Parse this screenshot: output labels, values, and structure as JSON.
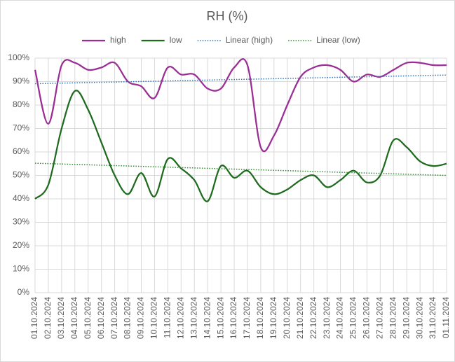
{
  "chart_data": {
    "type": "line",
    "title": "RH (%)",
    "categories": [
      "01.10.2024",
      "02.10.2024",
      "03.10.2024",
      "04.10.2024",
      "05.10.2024",
      "06.10.2024",
      "07.10.2024",
      "08.10.2024",
      "09.10.2024",
      "10.10.2024",
      "11.10.2024",
      "12.10.2024",
      "13.10.2024",
      "14.10.2024",
      "15.10.2024",
      "16.10.2024",
      "17.10.2024",
      "18.10.2024",
      "19.10.2024",
      "20.10.2024",
      "21.10.2024",
      "22.10.2024",
      "23.10.2024",
      "24.10.2024",
      "25.10.2024",
      "26.10.2024",
      "27.10.2024",
      "28.10.2024",
      "29.10.2024",
      "30.10.2024",
      "31.10.2024",
      "01.11.2024"
    ],
    "series": [
      {
        "name": "high",
        "color": "#9b2d94",
        "values": [
          95,
          72,
          97,
          98,
          95,
          96,
          98,
          90,
          88,
          83,
          96,
          93,
          93,
          87,
          87,
          96,
          97,
          62,
          67,
          80,
          92,
          96,
          97,
          95,
          90,
          93,
          92,
          95,
          98,
          98,
          97,
          97
        ]
      },
      {
        "name": "low",
        "color": "#1e6b1e",
        "values": [
          40,
          46,
          70,
          86,
          78,
          64,
          50,
          42,
          51,
          41,
          57,
          53,
          48,
          39,
          54,
          49,
          52,
          45,
          42,
          44,
          48,
          50,
          45,
          48,
          52,
          47,
          50,
          65,
          62,
          56,
          54,
          55
        ]
      }
    ],
    "trendlines": [
      {
        "name": "Linear (high)",
        "of": "high",
        "color": "#2e75b6",
        "style": "dotted"
      },
      {
        "name": "Linear (low)",
        "of": "low",
        "color": "#2e8b2e",
        "style": "dotted"
      }
    ],
    "ylim": [
      0,
      100
    ],
    "yticks": [
      {
        "value": 0,
        "label": "0%"
      },
      {
        "value": 10,
        "label": "10%"
      },
      {
        "value": 20,
        "label": "20%"
      },
      {
        "value": 30,
        "label": "30%"
      },
      {
        "value": 40,
        "label": "40%"
      },
      {
        "value": 50,
        "label": "50%"
      },
      {
        "value": 60,
        "label": "60%"
      },
      {
        "value": 70,
        "label": "70%"
      },
      {
        "value": 80,
        "label": "80%"
      },
      {
        "value": 90,
        "label": "90%"
      },
      {
        "value": 100,
        "label": "100%"
      }
    ],
    "grid": true,
    "smooth": true,
    "legend": "top"
  }
}
